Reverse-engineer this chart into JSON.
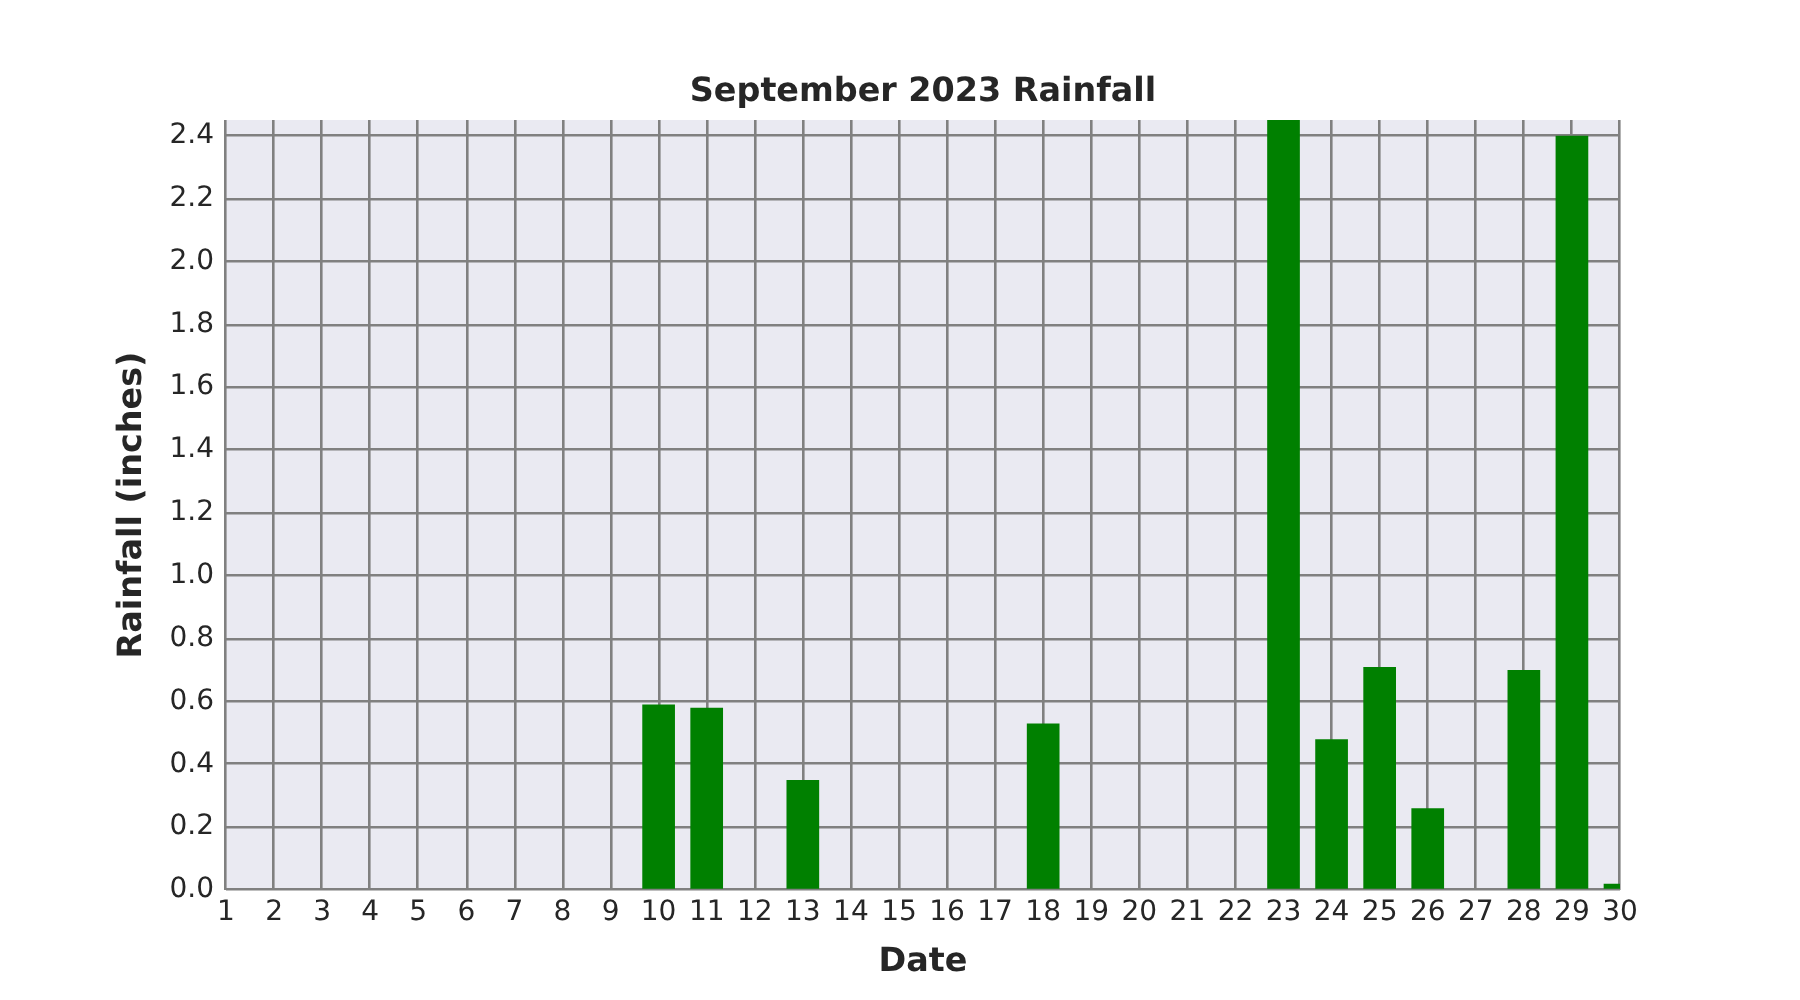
{
  "chart_data": {
    "type": "bar",
    "title": "September 2023 Rainfall",
    "xlabel": "Date",
    "ylabel": "Rainfall (inches)",
    "x": [
      1,
      2,
      3,
      4,
      5,
      6,
      7,
      8,
      9,
      10,
      11,
      12,
      13,
      14,
      15,
      16,
      17,
      18,
      19,
      20,
      21,
      22,
      23,
      24,
      25,
      26,
      27,
      28,
      29,
      30
    ],
    "values": [
      0,
      0,
      0,
      0,
      0,
      0,
      0,
      0,
      0,
      0.59,
      0.58,
      0,
      0.35,
      0,
      0,
      0,
      0,
      0.53,
      0,
      0,
      0,
      0,
      2.45,
      0.48,
      0.71,
      0.26,
      0,
      0.7,
      2.4,
      0.02
    ],
    "color": "#008000",
    "xlim": [
      1,
      30
    ],
    "xticks": [
      1,
      2,
      3,
      4,
      5,
      6,
      7,
      8,
      9,
      10,
      11,
      12,
      13,
      14,
      15,
      16,
      17,
      18,
      19,
      20,
      21,
      22,
      23,
      24,
      25,
      26,
      27,
      28,
      29,
      30
    ],
    "ylim": [
      0,
      2.45
    ],
    "yticks": [
      {
        "value": 0,
        "label": "0.0"
      },
      0.2,
      0.4,
      0.6,
      0.8,
      {
        "value": 1,
        "label": "1.0"
      },
      1.2,
      1.4,
      1.6,
      1.8,
      {
        "value": 2,
        "label": "2.0"
      },
      2.2,
      2.4
    ],
    "grid": true
  }
}
